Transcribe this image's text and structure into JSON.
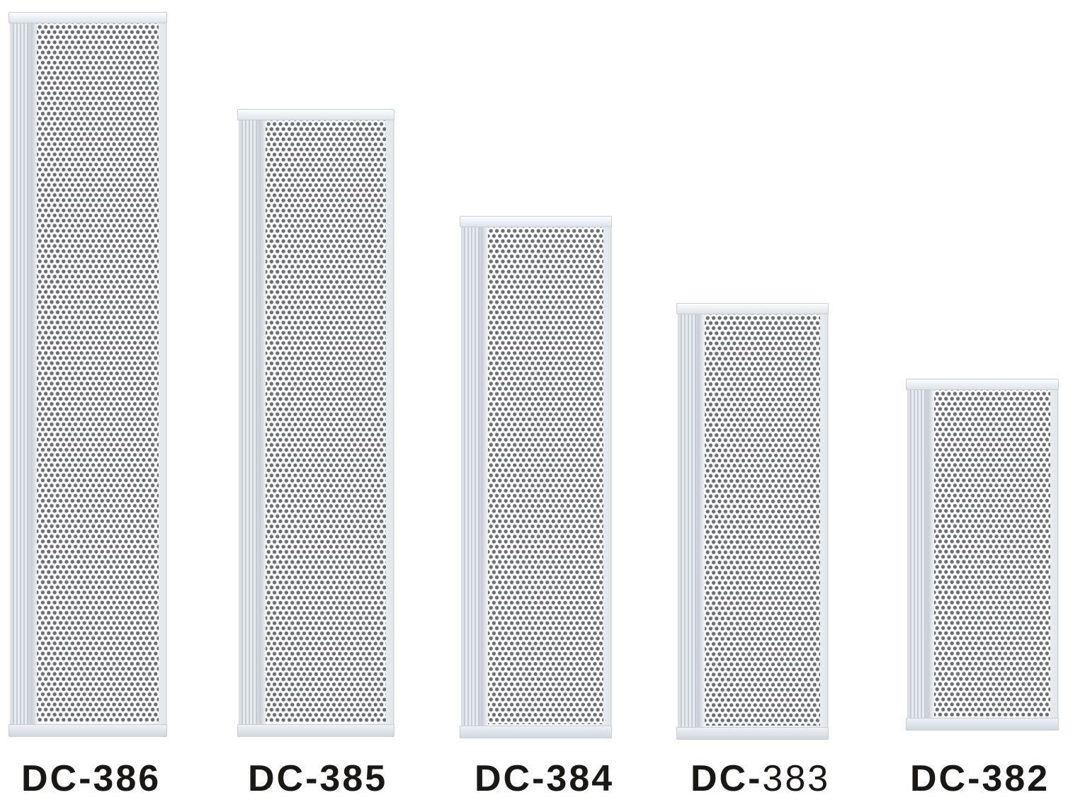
{
  "products": [
    {
      "prefix": "DC-",
      "number": "386",
      "number_weight": "bold"
    },
    {
      "prefix": "DC-",
      "number": "385",
      "number_weight": "bold"
    },
    {
      "prefix": "DC-",
      "number": "384",
      "number_weight": "bold"
    },
    {
      "prefix": "DC-",
      "number": "383",
      "number_weight": "regular"
    },
    {
      "prefix": "DC-",
      "number": "382",
      "number_weight": "bold"
    }
  ],
  "colors": {
    "background": "#ffffff",
    "speaker_body": "#f4f6f8",
    "grille_holes": "#6b6d70",
    "label_text": "#1a1717"
  }
}
